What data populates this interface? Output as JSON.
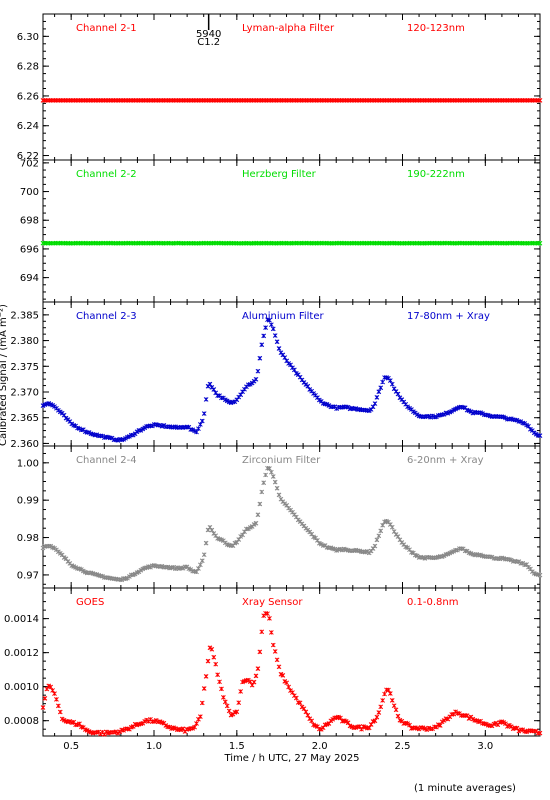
{
  "chart_data": {
    "type": "scatter",
    "xlabel": "Time / h UTC, 27 May 2025",
    "ylabel": "Calibrated Signal / (mA m⁻²)",
    "footnote": "(1 minute averages)",
    "xlim": [
      0.33,
      3.33
    ],
    "xticks": [
      "0.5",
      "1.0",
      "1.5",
      "2.0",
      "2.5",
      "3.0"
    ],
    "marker_label": "5940",
    "marker_class": "C1.2",
    "marker_x": 1.33,
    "panels": [
      {
        "channel": "Channel 2-1",
        "filter": "Lyman-alpha Filter",
        "band": "120-123nm",
        "color": "#ff0000",
        "ylim": [
          6.217,
          6.315
        ],
        "yticks": [
          "6.22",
          "6.24",
          "6.26",
          "6.28",
          "6.30"
        ],
        "profile": "flat",
        "base": 6.257,
        "noise": 0
      },
      {
        "channel": "Channel 2-2",
        "filter": "Herzberg Filter",
        "band": "190-222nm",
        "color": "#00dd00",
        "ylim": [
          692.3,
          702.2
        ],
        "yticks": [
          "694",
          "696",
          "698",
          "700",
          "702"
        ],
        "profile": "flat",
        "base": 696.4,
        "noise": 0.02
      },
      {
        "channel": "Channel 2-3",
        "filter": "Aluminium Filter",
        "band": "17-80nm + Xray",
        "color": "#0000cc",
        "ylim": [
          2.3595,
          2.3875
        ],
        "yticks": [
          "2.360",
          "2.365",
          "2.370",
          "2.375",
          "2.380",
          "2.385"
        ],
        "profile": "flare",
        "base": 2.3605,
        "scale": 1.0
      },
      {
        "channel": "Channel 2-4",
        "filter": "Zirconium Filter",
        "band": "6-20nm + Xray",
        "color": "#888888",
        "ylim": [
          0.9665,
          1.0045
        ],
        "yticks": [
          "0.97",
          "0.98",
          "0.99",
          "1.00"
        ],
        "profile": "flare",
        "base": 0.9685,
        "scale": 1.28
      },
      {
        "channel": "GOES",
        "filter": "Xray Sensor",
        "band": "0.1-0.8nm",
        "color": "#ff0000",
        "ylim": [
          0.00071,
          0.00158
        ],
        "yticks": [
          "0.0008",
          "0.0010",
          "0.0012",
          "0.0014"
        ],
        "profile": "goes",
        "base": 0.00072,
        "scale": 2.85e-05
      }
    ]
  }
}
